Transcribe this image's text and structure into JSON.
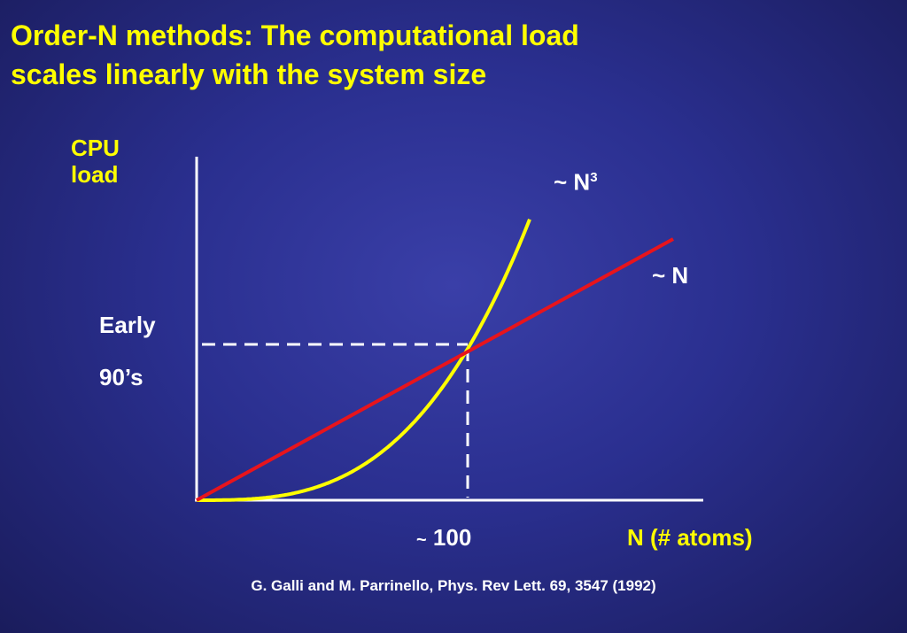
{
  "slide": {
    "title_line1": "Order-N methods: The computational load",
    "title_line2": "scales linearly with the system size",
    "citation": "G. Galli and M. Parrinello, Phys. Rev Lett. 69, 3547 (1992)"
  },
  "colors": {
    "title": "#ffff00",
    "axis": "#ffffff",
    "cubic_curve": "#ffff00",
    "linear_curve": "#e8141c",
    "crossover_guide": "#ffffff"
  },
  "chart_data": {
    "type": "line",
    "ylabel_line1": "CPU",
    "ylabel_line2": "load",
    "xlabel": "N  (# atoms)",
    "crossover": {
      "x": 100,
      "tick_label_prefix": "~",
      "tick_label_value": "100",
      "era_line1": "Early",
      "era_line2": "90’s"
    },
    "series": [
      {
        "label_prefix": "~ N",
        "label_exponent": "3",
        "relation": "N^3",
        "color": "#ffff00"
      },
      {
        "label_prefix": "~ N",
        "label_exponent": "",
        "relation": "N",
        "color": "#e8141c"
      }
    ]
  }
}
